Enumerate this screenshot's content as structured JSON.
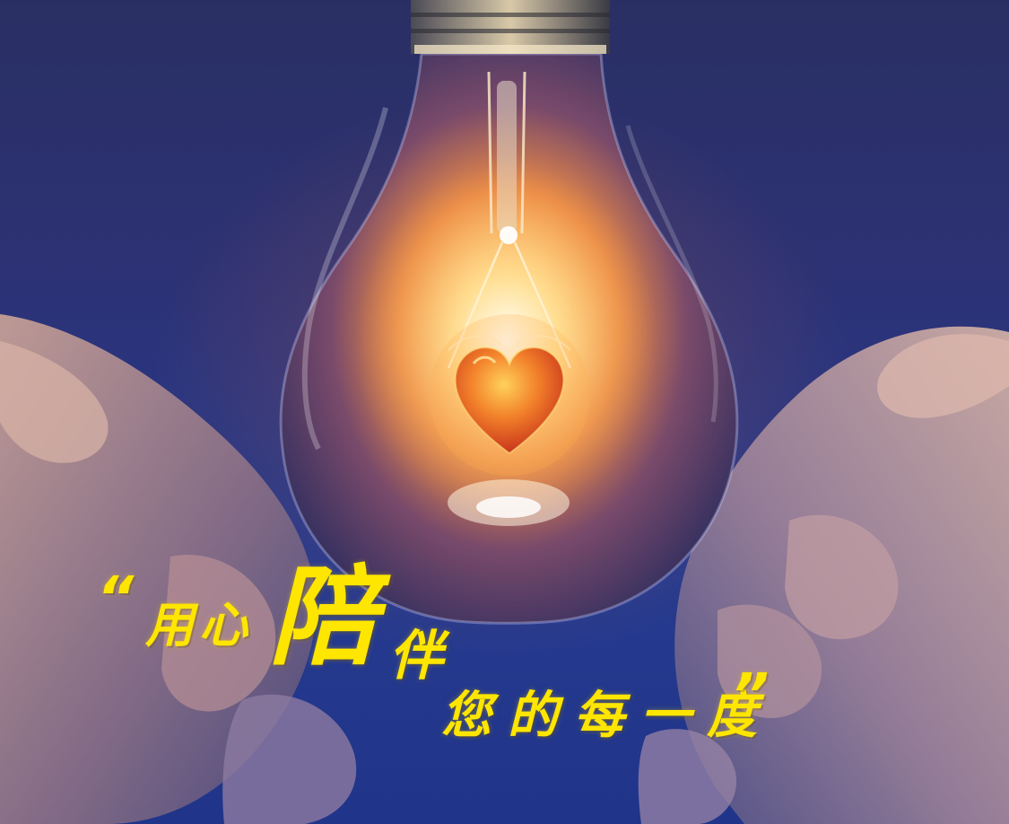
{
  "slogan": {
    "quote_open": "“",
    "part_a": "用心",
    "part_big": "陪",
    "part_b": "伴",
    "part_c": "您的每一度",
    "quote_close": "”"
  },
  "colors": {
    "slogan_text": "#ffe600",
    "background_blue": "#263a8e",
    "glow": "#ffb050",
    "heart": "#e8501a"
  },
  "scene_elements": [
    "light-bulb",
    "glowing-heart",
    "left-hand",
    "right-hand"
  ]
}
